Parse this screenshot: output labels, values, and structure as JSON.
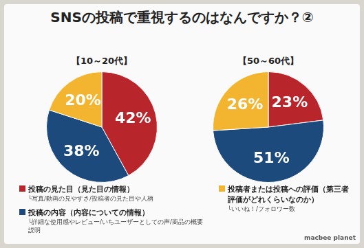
{
  "title": "SNSの投稿で重視するのはなんですか？②",
  "brand": "macbee planet",
  "category_notes": [
    "└写真/動画の見やすさ/投稿者の見た目や人柄",
    "└詳細な使用感やレビュー/いちユーザーとしての声/商品の概要説明",
    "└いいね！/フォロワー数"
  ],
  "chart_data": [
    {
      "type": "pie",
      "title": "【10～20代】",
      "categories": [
        "投稿の見た目（見た目の情報）",
        "投稿の内容（内容についての情報）",
        "投稿者または投稿への評価（第三者評価がどれくらいなのか）"
      ],
      "values": [
        42,
        38,
        20
      ],
      "value_labels": [
        "42%",
        "38%",
        "20%"
      ],
      "colors": [
        "#b8252b",
        "#1c4a7c",
        "#f3b52f"
      ],
      "data_labels": true
    },
    {
      "type": "pie",
      "title": "【50～60代】",
      "categories": [
        "投稿の見た目（見た目の情報）",
        "投稿の内容（内容についての情報）",
        "投稿者または投稿への評価（第三者評価がどれくらいなのか）"
      ],
      "values": [
        23,
        51,
        26
      ],
      "value_labels": [
        "23%",
        "51%",
        "26%"
      ],
      "colors": [
        "#b8252b",
        "#1c4a7c",
        "#f3b52f"
      ],
      "data_labels": true
    }
  ]
}
